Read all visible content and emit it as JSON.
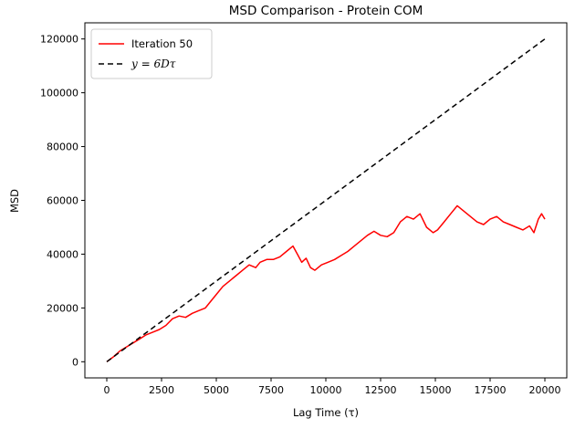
{
  "chart_data": {
    "type": "line",
    "title": "MSD Comparison - Protein COM",
    "xlabel": "Lag Time (τ)",
    "ylabel": "MSD",
    "xlim": [
      -1000,
      21000
    ],
    "ylim": [
      -6000,
      126000
    ],
    "xticks": [
      0,
      2500,
      5000,
      7500,
      10000,
      12500,
      15000,
      17500,
      20000
    ],
    "yticks": [
      0,
      20000,
      40000,
      60000,
      80000,
      100000,
      120000
    ],
    "grid": false,
    "legend_position": "top-left",
    "series": [
      {
        "name": "Iteration 50",
        "color": "#ff0000",
        "style": "solid",
        "x": [
          0,
          300,
          600,
          900,
          1200,
          1500,
          1800,
          2100,
          2400,
          2700,
          3000,
          3300,
          3600,
          3900,
          4200,
          4500,
          4800,
          5000,
          5300,
          5600,
          5900,
          6200,
          6500,
          6800,
          7000,
          7300,
          7600,
          7900,
          8200,
          8500,
          8700,
          8900,
          9100,
          9300,
          9500,
          9800,
          10100,
          10400,
          10700,
          11000,
          11300,
          11600,
          11900,
          12200,
          12500,
          12800,
          13100,
          13400,
          13700,
          14000,
          14300,
          14600,
          14900,
          15100,
          15400,
          15700,
          16000,
          16300,
          16600,
          16900,
          17200,
          17500,
          17800,
          18100,
          18400,
          18700,
          19000,
          19300,
          19500,
          19700,
          19850,
          20000
        ],
        "y": [
          0,
          1800,
          4000,
          5500,
          7000,
          8500,
          10000,
          11000,
          12000,
          13500,
          16000,
          17000,
          16500,
          18000,
          19000,
          20000,
          23000,
          25000,
          28000,
          30000,
          32000,
          34000,
          36000,
          35000,
          37000,
          38000,
          38000,
          39000,
          41000,
          43000,
          40000,
          37000,
          38500,
          35000,
          34000,
          36000,
          37000,
          38000,
          39500,
          41000,
          43000,
          45000,
          47000,
          48500,
          47000,
          46500,
          48000,
          52000,
          54000,
          53000,
          55000,
          50000,
          48000,
          49000,
          52000,
          55000,
          58000,
          56000,
          54000,
          52000,
          51000,
          53000,
          54000,
          52000,
          51000,
          50000,
          49000,
          50500,
          48000,
          53000,
          55000,
          53000
        ]
      },
      {
        "name": "y = 6Dτ",
        "color": "#000000",
        "style": "dashed",
        "x": [
          0,
          20000
        ],
        "y": [
          0,
          120000
        ]
      }
    ]
  }
}
